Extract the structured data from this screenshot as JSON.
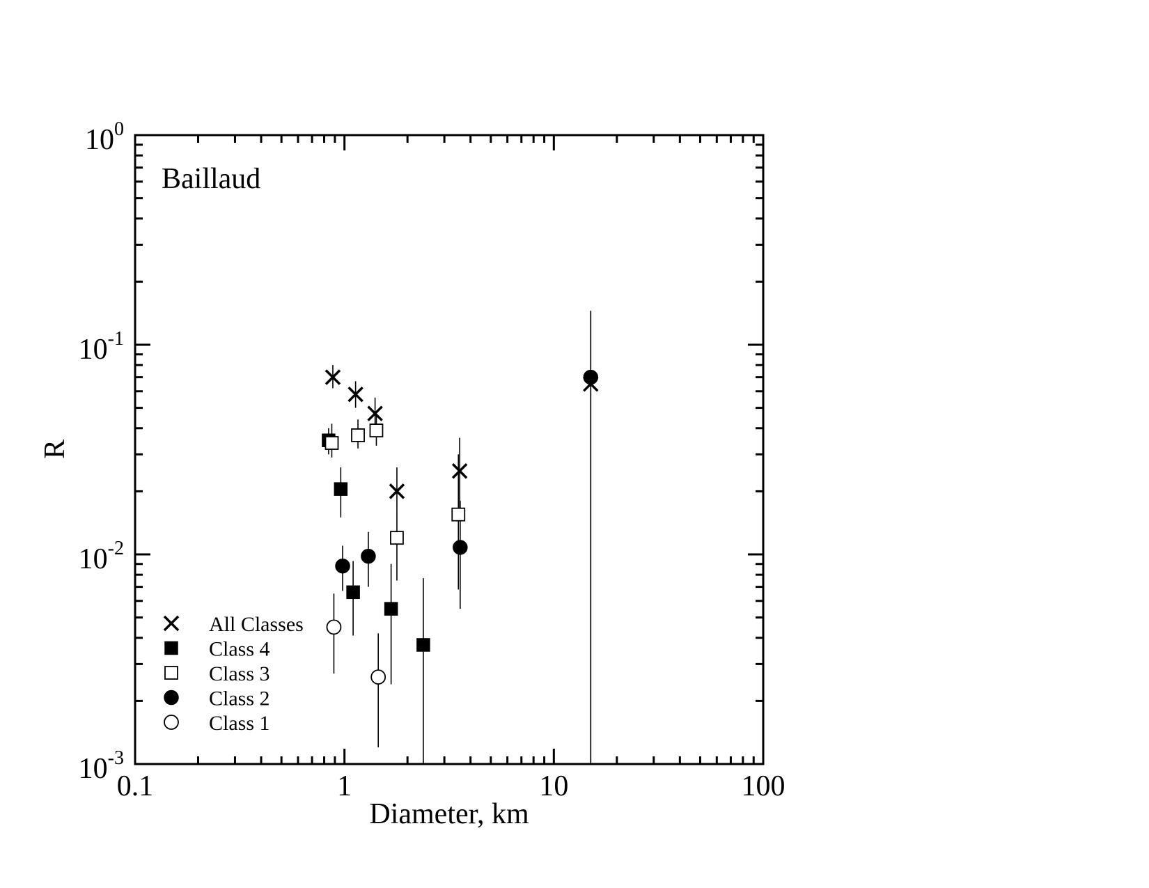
{
  "chart_data": {
    "type": "scatter",
    "annotation": "Baillaud",
    "xlabel": "Diameter, km",
    "ylabel": "R",
    "xscale": "log",
    "yscale": "log",
    "xlim": [
      0.1,
      100
    ],
    "ylim": [
      0.001,
      1
    ],
    "x_ticks": [
      {
        "value": 0.1,
        "label": "0.1"
      },
      {
        "value": 1,
        "label": "1"
      },
      {
        "value": 10,
        "label": "10"
      },
      {
        "value": 100,
        "label": "100"
      }
    ],
    "y_ticks": [
      {
        "value": 0.001,
        "base": "10",
        "exp": "-3"
      },
      {
        "value": 0.01,
        "base": "10",
        "exp": "-2"
      },
      {
        "value": 0.1,
        "base": "10",
        "exp": "-1"
      },
      {
        "value": 1,
        "base": "10",
        "exp": "0"
      }
    ],
    "legend_position": "bottom-left",
    "series": [
      {
        "name": "All Classes",
        "marker": "x",
        "points": [
          {
            "x": 0.88,
            "y": 0.07,
            "lo": 0.062,
            "hi": 0.08
          },
          {
            "x": 1.13,
            "y": 0.058,
            "lo": 0.05,
            "hi": 0.067
          },
          {
            "x": 1.4,
            "y": 0.047,
            "lo": 0.04,
            "hi": 0.056
          },
          {
            "x": 1.78,
            "y": 0.02,
            "lo": 0.016,
            "hi": 0.026
          },
          {
            "x": 3.55,
            "y": 0.025,
            "lo": 0.016,
            "hi": 0.036
          },
          {
            "x": 15.0,
            "y": 0.065,
            "lo": 0.001,
            "hi": 0.145
          }
        ]
      },
      {
        "name": "Class 4",
        "marker": "filled-square",
        "points": [
          {
            "x": 0.84,
            "y": 0.035,
            "lo": 0.03,
            "hi": 0.04
          },
          {
            "x": 0.96,
            "y": 0.0205,
            "lo": 0.015,
            "hi": 0.026
          },
          {
            "x": 1.1,
            "y": 0.0066,
            "lo": 0.0041,
            "hi": 0.0093
          },
          {
            "x": 1.67,
            "y": 0.0055,
            "lo": 0.0024,
            "hi": 0.009
          },
          {
            "x": 2.38,
            "y": 0.0037,
            "lo": 0.001,
            "hi": 0.0077
          }
        ]
      },
      {
        "name": "Class 3",
        "marker": "open-square",
        "points": [
          {
            "x": 0.87,
            "y": 0.034,
            "lo": 0.029,
            "hi": 0.042
          },
          {
            "x": 1.16,
            "y": 0.037,
            "lo": 0.032,
            "hi": 0.044
          },
          {
            "x": 1.42,
            "y": 0.039,
            "lo": 0.033,
            "hi": 0.046
          },
          {
            "x": 1.78,
            "y": 0.012,
            "lo": 0.0075,
            "hi": 0.016
          },
          {
            "x": 3.5,
            "y": 0.0155,
            "lo": 0.0068,
            "hi": 0.03
          }
        ]
      },
      {
        "name": "Class 2",
        "marker": "filled-circle",
        "points": [
          {
            "x": 0.98,
            "y": 0.0088,
            "lo": 0.0067,
            "hi": 0.011
          },
          {
            "x": 1.3,
            "y": 0.0098,
            "lo": 0.007,
            "hi": 0.0128
          },
          {
            "x": 3.57,
            "y": 0.0108,
            "lo": 0.0055,
            "hi": 0.018
          },
          {
            "x": 15.0,
            "y": 0.07,
            "lo": 0.001,
            "hi": 0.145
          }
        ]
      },
      {
        "name": "Class 1",
        "marker": "open-circle",
        "points": [
          {
            "x": 0.89,
            "y": 0.0045,
            "lo": 0.0027,
            "hi": 0.0065
          },
          {
            "x": 1.45,
            "y": 0.0026,
            "lo": 0.0012,
            "hi": 0.0042
          }
        ]
      }
    ]
  }
}
